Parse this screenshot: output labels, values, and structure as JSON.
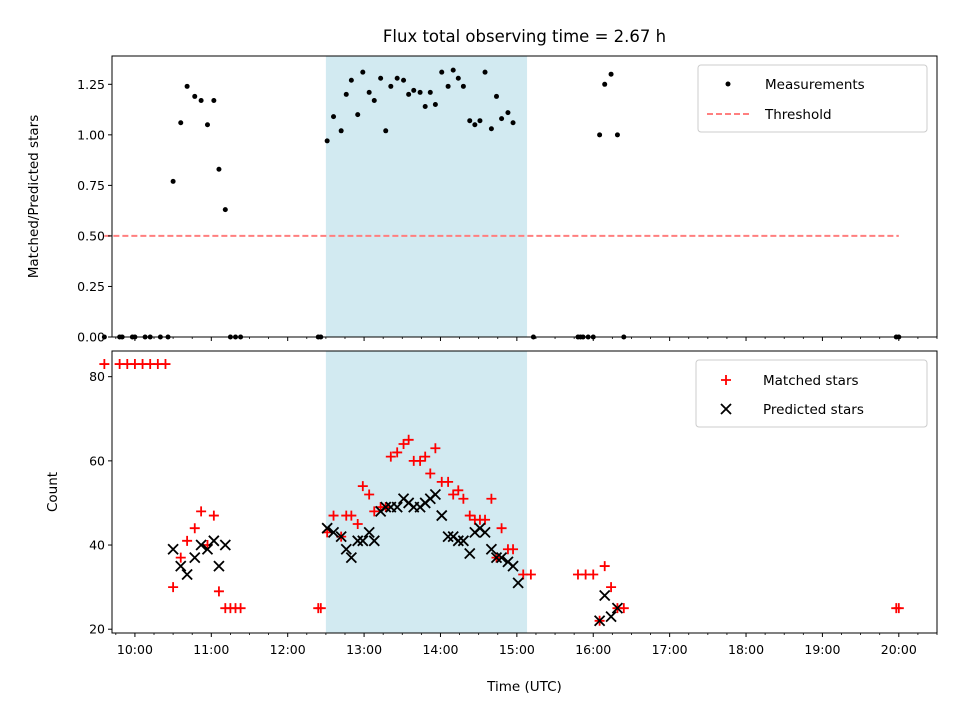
{
  "colors": {
    "measurements": "#000000",
    "threshold": "#ff7f7f",
    "matched": "#ff0000",
    "predicted": "#000000",
    "span": "#add8e6"
  },
  "chart_data": [
    {
      "type": "scatter",
      "title": "Flux total observing time = 2.67 h",
      "xlabel": "",
      "ylabel": "Matched/Predicted stars",
      "xlim": [
        "09:42",
        "20:30"
      ],
      "ylim": [
        0,
        1.39
      ],
      "yticks": [
        0.0,
        0.25,
        0.5,
        0.75,
        1.0,
        1.25
      ],
      "ytick_labels": [
        "0.00",
        "0.25",
        "0.50",
        "0.75",
        "1.00",
        "1.25"
      ],
      "highlight_span": [
        "12:30",
        "15:08"
      ],
      "legend": {
        "position": "top-right",
        "entries": [
          "Measurements",
          "Threshold"
        ]
      },
      "threshold": {
        "name": "Threshold",
        "value": 0.5,
        "x": [
          "09:36",
          "20:00"
        ]
      },
      "series": [
        {
          "name": "Measurements",
          "points": [
            [
              "09:36",
              0
            ],
            [
              "09:48",
              0
            ],
            [
              "09:50",
              0
            ],
            [
              "09:58",
              0
            ],
            [
              "10:00",
              0
            ],
            [
              "10:08",
              0
            ],
            [
              "10:12",
              0
            ],
            [
              "10:20",
              0
            ],
            [
              "10:26",
              0
            ],
            [
              "10:30",
              0.77
            ],
            [
              "10:36",
              1.06
            ],
            [
              "10:41",
              1.24
            ],
            [
              "10:47",
              1.19
            ],
            [
              "10:52",
              1.17
            ],
            [
              "10:57",
              1.05
            ],
            [
              "11:02",
              1.17
            ],
            [
              "11:06",
              0.83
            ],
            [
              "11:11",
              0.63
            ],
            [
              "11:15",
              0
            ],
            [
              "11:19",
              0
            ],
            [
              "11:23",
              0
            ],
            [
              "12:24",
              0
            ],
            [
              "12:26",
              0
            ],
            [
              "12:31",
              0.97
            ],
            [
              "12:36",
              1.09
            ],
            [
              "12:42",
              1.02
            ],
            [
              "12:46",
              1.2
            ],
            [
              "12:50",
              1.27
            ],
            [
              "12:55",
              1.1
            ],
            [
              "12:59",
              1.31
            ],
            [
              "13:04",
              1.21
            ],
            [
              "13:08",
              1.17
            ],
            [
              "13:13",
              1.28
            ],
            [
              "13:17",
              1.02
            ],
            [
              "13:21",
              1.24
            ],
            [
              "13:26",
              1.28
            ],
            [
              "13:31",
              1.27
            ],
            [
              "13:35",
              1.2
            ],
            [
              "13:39",
              1.22
            ],
            [
              "13:44",
              1.21
            ],
            [
              "13:48",
              1.14
            ],
            [
              "13:52",
              1.21
            ],
            [
              "13:56",
              1.15
            ],
            [
              "14:01",
              1.31
            ],
            [
              "14:06",
              1.24
            ],
            [
              "14:10",
              1.32
            ],
            [
              "14:14",
              1.28
            ],
            [
              "14:18",
              1.24
            ],
            [
              "14:23",
              1.07
            ],
            [
              "14:27",
              1.05
            ],
            [
              "14:31",
              1.07
            ],
            [
              "14:35",
              1.31
            ],
            [
              "14:40",
              1.03
            ],
            [
              "14:44",
              1.19
            ],
            [
              "14:48",
              1.08
            ],
            [
              "14:53",
              1.11
            ],
            [
              "14:57",
              1.06
            ],
            [
              "15:13",
              0
            ],
            [
              "15:48",
              0
            ],
            [
              "15:50",
              0
            ],
            [
              "15:52",
              0
            ],
            [
              "15:56",
              0
            ],
            [
              "16:00",
              0
            ],
            [
              "16:05",
              1.0
            ],
            [
              "16:09",
              1.25
            ],
            [
              "16:14",
              1.3
            ],
            [
              "16:19",
              1.0
            ],
            [
              "16:24",
              0
            ],
            [
              "19:58",
              0
            ],
            [
              "20:00",
              0
            ]
          ]
        }
      ]
    },
    {
      "type": "scatter",
      "title": "",
      "xlabel": "Time (UTC)",
      "ylabel": "Count",
      "xlim": [
        "09:42",
        "20:30"
      ],
      "ylim": [
        19.1,
        86.1
      ],
      "yticks": [
        20,
        40,
        60,
        80
      ],
      "ytick_labels": [
        "20",
        "40",
        "60",
        "80"
      ],
      "xticks": [
        "10:00",
        "11:00",
        "12:00",
        "13:00",
        "14:00",
        "15:00",
        "16:00",
        "17:00",
        "18:00",
        "19:00",
        "20:00"
      ],
      "highlight_span": [
        "12:30",
        "15:08"
      ],
      "legend": {
        "position": "top-right",
        "entries": [
          "Matched stars",
          "Predicted stars"
        ]
      },
      "series": [
        {
          "name": "Matched stars",
          "points": [
            [
              "09:36",
              83
            ],
            [
              "09:48",
              83
            ],
            [
              "09:54",
              83
            ],
            [
              "10:00",
              83
            ],
            [
              "10:06",
              83
            ],
            [
              "10:12",
              83
            ],
            [
              "10:18",
              83
            ],
            [
              "10:24",
              83
            ],
            [
              "10:30",
              30
            ],
            [
              "10:36",
              37
            ],
            [
              "10:41",
              41
            ],
            [
              "10:47",
              44
            ],
            [
              "10:52",
              48
            ],
            [
              "10:57",
              40
            ],
            [
              "11:02",
              47
            ],
            [
              "11:06",
              29
            ],
            [
              "11:11",
              25
            ],
            [
              "11:15",
              25
            ],
            [
              "11:19",
              25
            ],
            [
              "11:23",
              25
            ],
            [
              "12:24",
              25
            ],
            [
              "12:26",
              25
            ],
            [
              "12:31",
              43
            ],
            [
              "12:36",
              47
            ],
            [
              "12:42",
              42
            ],
            [
              "12:46",
              47
            ],
            [
              "12:50",
              47
            ],
            [
              "12:55",
              45
            ],
            [
              "12:59",
              54
            ],
            [
              "13:04",
              52
            ],
            [
              "13:08",
              48
            ],
            [
              "13:13",
              49
            ],
            [
              "13:17",
              49
            ],
            [
              "13:21",
              61
            ],
            [
              "13:26",
              62
            ],
            [
              "13:31",
              64
            ],
            [
              "13:35",
              65
            ],
            [
              "13:39",
              60
            ],
            [
              "13:44",
              60
            ],
            [
              "13:48",
              61
            ],
            [
              "13:52",
              57
            ],
            [
              "13:56",
              63
            ],
            [
              "14:01",
              55
            ],
            [
              "14:06",
              55
            ],
            [
              "14:10",
              52
            ],
            [
              "14:14",
              53
            ],
            [
              "14:18",
              51
            ],
            [
              "14:23",
              47
            ],
            [
              "14:27",
              46
            ],
            [
              "14:31",
              46
            ],
            [
              "14:35",
              46
            ],
            [
              "14:40",
              51
            ],
            [
              "14:44",
              37
            ],
            [
              "14:48",
              44
            ],
            [
              "14:53",
              39
            ],
            [
              "14:57",
              39
            ],
            [
              "15:05",
              33
            ],
            [
              "15:11",
              33
            ],
            [
              "15:48",
              33
            ],
            [
              "15:54",
              33
            ],
            [
              "16:00",
              33
            ],
            [
              "16:05",
              22
            ],
            [
              "16:09",
              35
            ],
            [
              "16:14",
              30
            ],
            [
              "16:19",
              25
            ],
            [
              "16:24",
              25
            ],
            [
              "19:58",
              25
            ],
            [
              "20:00",
              25
            ]
          ]
        },
        {
          "name": "Predicted stars",
          "points": [
            [
              "10:30",
              39
            ],
            [
              "10:36",
              35
            ],
            [
              "10:41",
              33
            ],
            [
              "10:47",
              37
            ],
            [
              "10:52",
              40
            ],
            [
              "10:57",
              39
            ],
            [
              "11:02",
              41
            ],
            [
              "11:06",
              35
            ],
            [
              "11:11",
              40
            ],
            [
              "12:31",
              44
            ],
            [
              "12:36",
              43
            ],
            [
              "12:42",
              42
            ],
            [
              "12:46",
              39
            ],
            [
              "12:50",
              37
            ],
            [
              "12:55",
              41
            ],
            [
              "12:59",
              41
            ],
            [
              "13:04",
              43
            ],
            [
              "13:08",
              41
            ],
            [
              "13:13",
              48
            ],
            [
              "13:17",
              49
            ],
            [
              "13:21",
              49
            ],
            [
              "13:26",
              49
            ],
            [
              "13:31",
              51
            ],
            [
              "13:35",
              50
            ],
            [
              "13:39",
              49
            ],
            [
              "13:44",
              49
            ],
            [
              "13:48",
              50
            ],
            [
              "13:52",
              51
            ],
            [
              "13:56",
              52
            ],
            [
              "14:01",
              47
            ],
            [
              "14:06",
              42
            ],
            [
              "14:10",
              42
            ],
            [
              "14:14",
              41
            ],
            [
              "14:18",
              41
            ],
            [
              "14:23",
              38
            ],
            [
              "14:27",
              43
            ],
            [
              "14:31",
              44
            ],
            [
              "14:35",
              43
            ],
            [
              "14:40",
              39
            ],
            [
              "14:44",
              37
            ],
            [
              "14:48",
              37
            ],
            [
              "14:53",
              36
            ],
            [
              "14:57",
              35
            ],
            [
              "15:01",
              31
            ],
            [
              "16:05",
              22
            ],
            [
              "16:09",
              28
            ],
            [
              "16:14",
              23
            ],
            [
              "16:19",
              25
            ]
          ]
        }
      ]
    }
  ]
}
